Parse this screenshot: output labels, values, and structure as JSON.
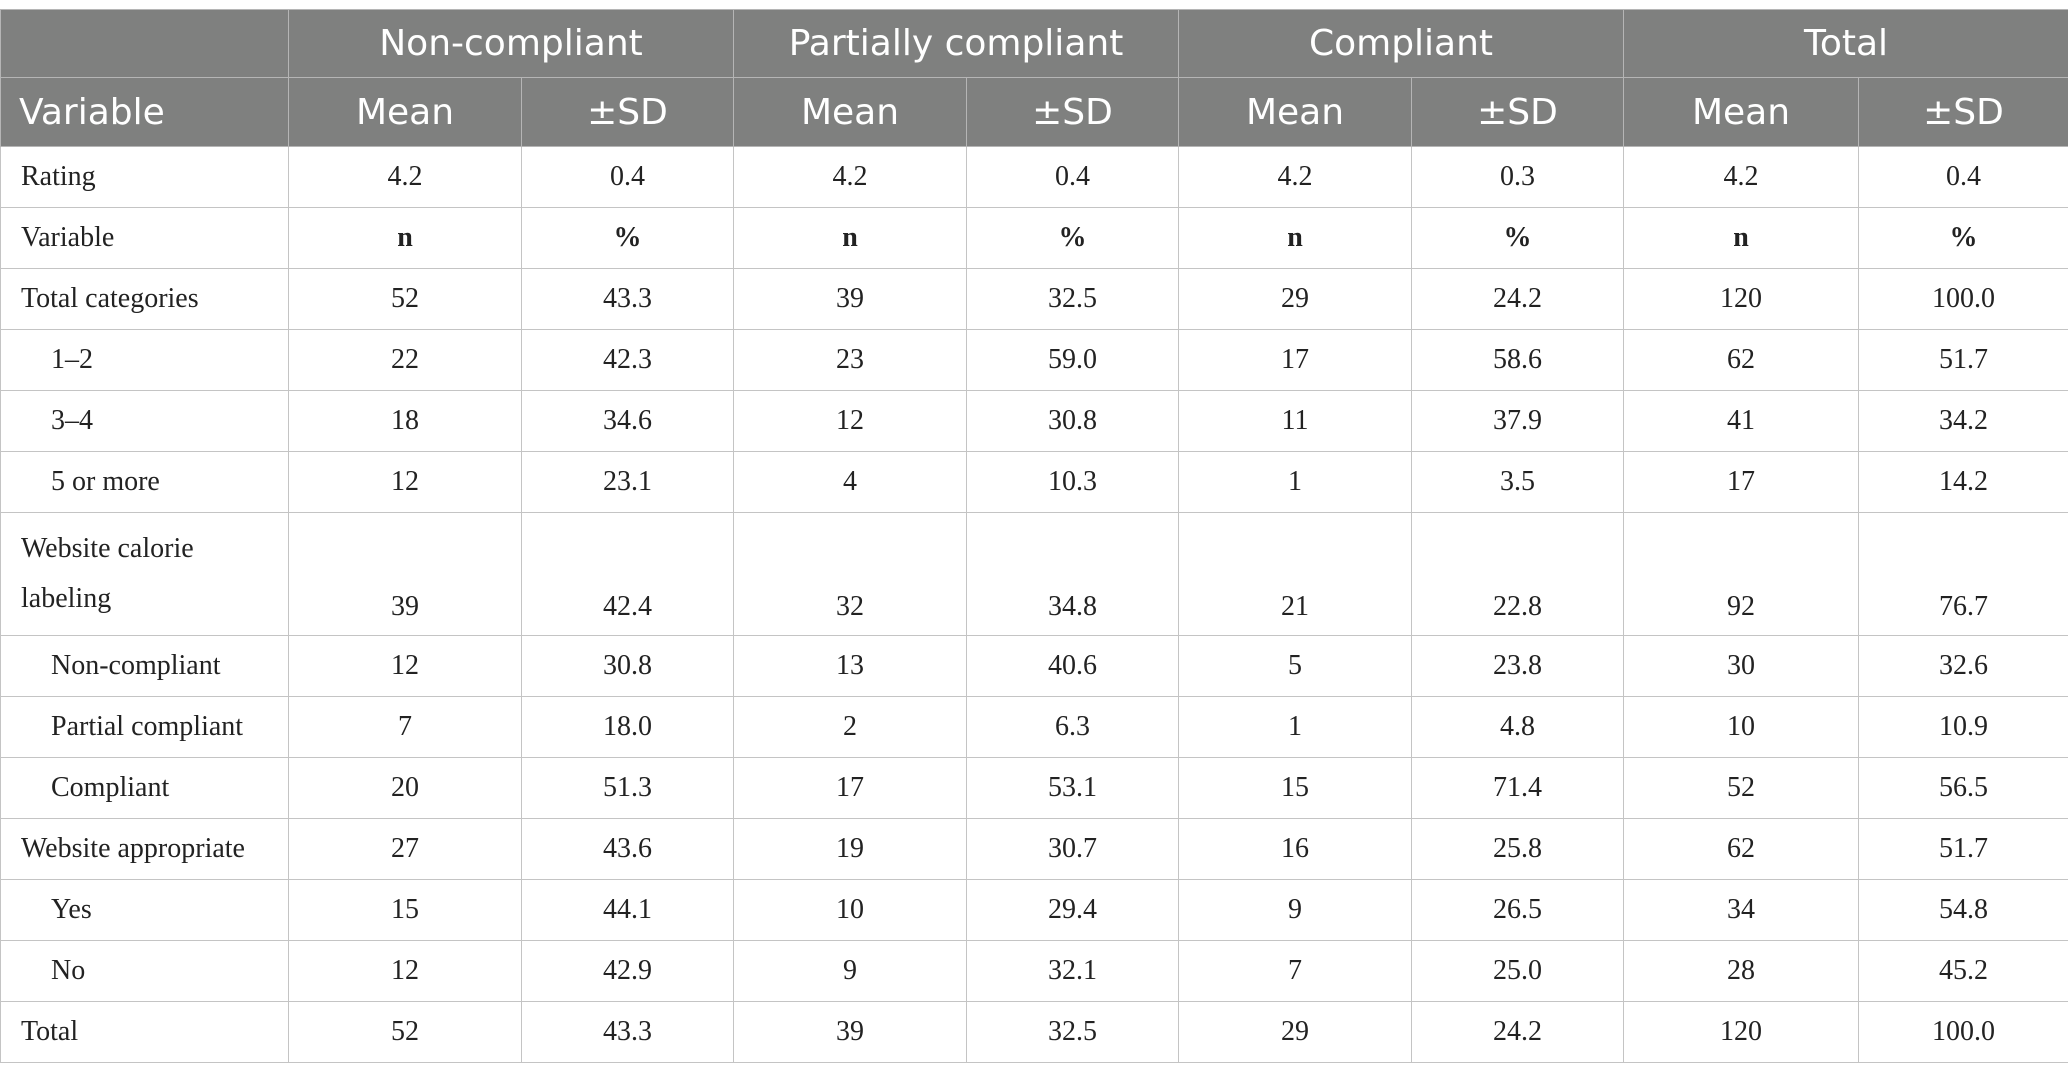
{
  "groups": [
    "Non-compliant",
    "Partially compliant",
    "Compliant",
    "Total"
  ],
  "subheader": {
    "variable": "Variable",
    "mean": "Mean",
    "sd": "±SD"
  },
  "rating_row": {
    "label": "Rating",
    "values": [
      "4.2",
      "0.4",
      "4.2",
      "0.4",
      "4.2",
      "0.3",
      "4.2",
      "0.4"
    ]
  },
  "count_header_row": {
    "label": "Variable",
    "values": [
      "n",
      "%",
      "n",
      "%",
      "n",
      "%",
      "n",
      "%"
    ]
  },
  "rows": [
    {
      "label": "Total categories",
      "indent": false,
      "values": [
        "52",
        "43.3",
        "39",
        "32.5",
        "29",
        "24.2",
        "120",
        "100.0"
      ]
    },
    {
      "label": "1–2",
      "indent": true,
      "values": [
        "22",
        "42.3",
        "23",
        "59.0",
        "17",
        "58.6",
        "62",
        "51.7"
      ]
    },
    {
      "label": "3–4",
      "indent": true,
      "values": [
        "18",
        "34.6",
        "12",
        "30.8",
        "11",
        "37.9",
        "41",
        "34.2"
      ]
    },
    {
      "label": "5 or more",
      "indent": true,
      "values": [
        "12",
        "23.1",
        "4",
        "10.3",
        "1",
        "3.5",
        "17",
        "14.2"
      ]
    },
    {
      "label": "Website calorie labeling",
      "indent": false,
      "tall": true,
      "values": [
        "39",
        "42.4",
        "32",
        "34.8",
        "21",
        "22.8",
        "92",
        "76.7"
      ]
    },
    {
      "label": "Non-compliant",
      "indent": true,
      "values": [
        "12",
        "30.8",
        "13",
        "40.6",
        "5",
        "23.8",
        "30",
        "32.6"
      ]
    },
    {
      "label": "Partial compliant",
      "indent": true,
      "values": [
        "7",
        "18.0",
        "2",
        "6.3",
        "1",
        "4.8",
        "10",
        "10.9"
      ]
    },
    {
      "label": "Compliant",
      "indent": true,
      "values": [
        "20",
        "51.3",
        "17",
        "53.1",
        "15",
        "71.4",
        "52",
        "56.5"
      ]
    },
    {
      "label": "Website appropriate",
      "indent": false,
      "values": [
        "27",
        "43.6",
        "19",
        "30.7",
        "16",
        "25.8",
        "62",
        "51.7"
      ]
    },
    {
      "label": "Yes",
      "indent": true,
      "values": [
        "15",
        "44.1",
        "10",
        "29.4",
        "9",
        "26.5",
        "34",
        "54.8"
      ]
    },
    {
      "label": "No",
      "indent": true,
      "values": [
        "12",
        "42.9",
        "9",
        "32.1",
        "7",
        "25.0",
        "28",
        "45.2"
      ]
    },
    {
      "label": "Total",
      "indent": false,
      "values": [
        "52",
        "43.3",
        "39",
        "32.5",
        "29",
        "24.2",
        "120",
        "100.0"
      ]
    }
  ]
}
